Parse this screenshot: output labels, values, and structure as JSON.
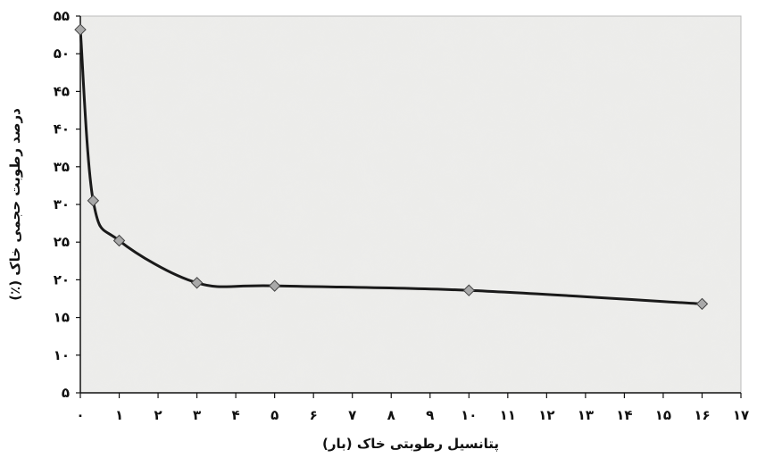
{
  "chart_data": {
    "type": "line",
    "title": "",
    "xlabel": "پتانسیل رطوبتی خاک (بار)",
    "ylabel": "درصد رطوبت حجمی خاک (٪)",
    "xlim": [
      0,
      17
    ],
    "ylim": [
      5,
      55
    ],
    "x_ticks": [
      0,
      1,
      2,
      3,
      4,
      5,
      6,
      7,
      8,
      9,
      10,
      11,
      12,
      13,
      14,
      15,
      16,
      17
    ],
    "x_tick_labels": [
      "۰",
      "۱",
      "۲",
      "۳",
      "۴",
      "۵",
      "۶",
      "۷",
      "۸",
      "۹",
      "۱۰",
      "۱۱",
      "۱۲",
      "۱۳",
      "۱۴",
      "۱۵",
      "۱۶",
      "۱۷"
    ],
    "y_ticks": [
      5,
      10,
      15,
      20,
      25,
      30,
      35,
      40,
      45,
      50,
      55
    ],
    "y_tick_labels": [
      "۵",
      "۱۰",
      "۱۵",
      "۲۰",
      "۲۵",
      "۳۰",
      "۳۵",
      "۴۰",
      "۴۵",
      "۵۰",
      "۵۵"
    ],
    "grid": false,
    "series": [
      {
        "marker": "diamond",
        "color": "#1a1a1a",
        "marker_color": "#a9a9a9",
        "x": [
          0,
          0.33,
          1,
          3,
          5,
          10,
          16
        ],
        "y": [
          53.2,
          30.5,
          25.2,
          19.6,
          19.2,
          18.6,
          16.8
        ]
      }
    ]
  }
}
